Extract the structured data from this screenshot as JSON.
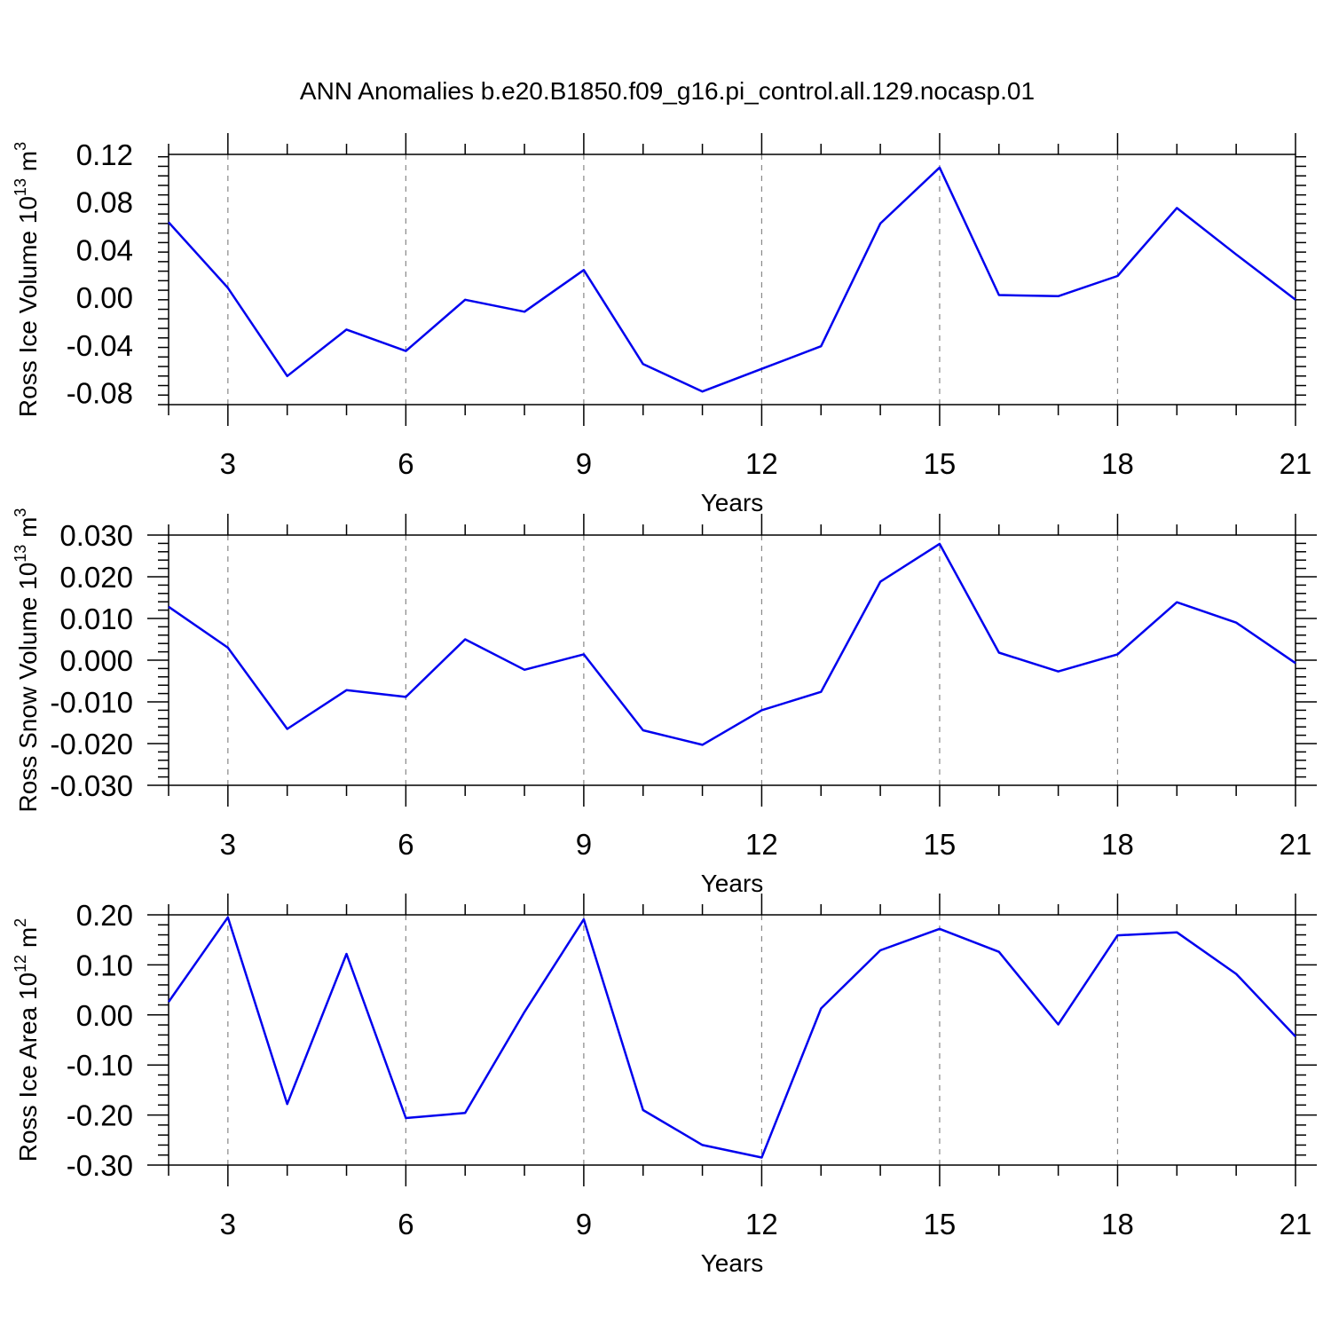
{
  "title": "ANN Anomalies b.e20.B1850.f09_g16.pi_control.all.129.nocasp.01",
  "colors": {
    "line": "#0000ee",
    "grid": "#888888",
    "axis": "#000000"
  },
  "chart_data": [
    {
      "type": "line",
      "ylabel": "Ross Ice Volume 10",
      "ylabel_sup": "13",
      "ylabel_unit": "m",
      "ylabel_unit_sup": "3",
      "xlabel": "Years",
      "xlim": [
        2,
        21
      ],
      "ylim": [
        -0.09,
        0.12
      ],
      "xticks": [
        3,
        6,
        9,
        12,
        15,
        18,
        21
      ],
      "xtick_labels": [
        "3",
        "6",
        "9",
        "12",
        "15",
        "18",
        "21"
      ],
      "yticks": [
        -0.08,
        -0.04,
        0.0,
        0.04,
        0.08,
        0.12
      ],
      "ytick_labels": [
        "-0.08",
        "-0.04",
        "0.00",
        "0.04",
        "0.08",
        "0.12"
      ],
      "grid": "vertical-dashed",
      "x": [
        2,
        3,
        4,
        5,
        6,
        7,
        8,
        9,
        10,
        11,
        12,
        13,
        14,
        15,
        16,
        17,
        18,
        19,
        20,
        21
      ],
      "series": [
        {
          "values": [
            0.063,
            0.008,
            -0.066,
            -0.027,
            -0.045,
            -0.002,
            -0.012,
            0.023,
            -0.056,
            -0.079,
            -0.06,
            -0.041,
            0.062,
            0.109,
            0.002,
            0.001,
            0.018,
            0.075,
            0.036,
            -0.002
          ]
        }
      ]
    },
    {
      "type": "line",
      "ylabel": "Ross Snow Volume 10",
      "ylabel_sup": "13",
      "ylabel_unit": "m",
      "ylabel_unit_sup": "3",
      "xlabel": "Years",
      "xlim": [
        2,
        21
      ],
      "ylim": [
        -0.03,
        0.03
      ],
      "xticks": [
        3,
        6,
        9,
        12,
        15,
        18,
        21
      ],
      "xtick_labels": [
        "3",
        "6",
        "9",
        "12",
        "15",
        "18",
        "21"
      ],
      "yticks": [
        -0.03,
        -0.02,
        -0.01,
        0.0,
        0.01,
        0.02,
        0.03
      ],
      "ytick_labels": [
        "-0.030",
        "-0.020",
        "-0.010",
        "0.000",
        "0.010",
        "0.020",
        "0.030"
      ],
      "grid": "vertical-dashed",
      "x": [
        2,
        3,
        4,
        5,
        6,
        7,
        8,
        9,
        10,
        11,
        12,
        13,
        14,
        15,
        16,
        17,
        18,
        19,
        20,
        21
      ],
      "series": [
        {
          "values": [
            0.0128,
            0.003,
            -0.0165,
            -0.0072,
            -0.0088,
            0.005,
            -0.0023,
            0.0014,
            -0.0168,
            -0.0203,
            -0.012,
            -0.0076,
            0.0188,
            0.0279,
            0.0018,
            -0.0027,
            0.0014,
            0.0139,
            0.009,
            -0.0007
          ]
        }
      ]
    },
    {
      "type": "line",
      "ylabel": "Ross Ice Area 10",
      "ylabel_sup": "12",
      "ylabel_unit": "m",
      "ylabel_unit_sup": "2",
      "xlabel": "Years",
      "xlim": [
        2,
        21
      ],
      "ylim": [
        -0.3,
        0.2
      ],
      "xticks": [
        3,
        6,
        9,
        12,
        15,
        18,
        21
      ],
      "xtick_labels": [
        "3",
        "6",
        "9",
        "12",
        "15",
        "18",
        "21"
      ],
      "yticks": [
        -0.3,
        -0.2,
        -0.1,
        0.0,
        0.1,
        0.2
      ],
      "ytick_labels": [
        "-0.30",
        "-0.20",
        "-0.10",
        "0.00",
        "0.10",
        "0.20"
      ],
      "grid": "vertical-dashed",
      "x": [
        2,
        3,
        4,
        5,
        6,
        7,
        8,
        9,
        10,
        11,
        12,
        13,
        14,
        15,
        16,
        17,
        18,
        19,
        20,
        21
      ],
      "series": [
        {
          "values": [
            0.026,
            0.195,
            -0.178,
            0.122,
            -0.206,
            -0.196,
            0.006,
            0.191,
            -0.19,
            -0.26,
            -0.285,
            0.013,
            0.129,
            0.172,
            0.126,
            -0.019,
            0.159,
            0.165,
            0.082,
            -0.043
          ]
        }
      ]
    }
  ]
}
